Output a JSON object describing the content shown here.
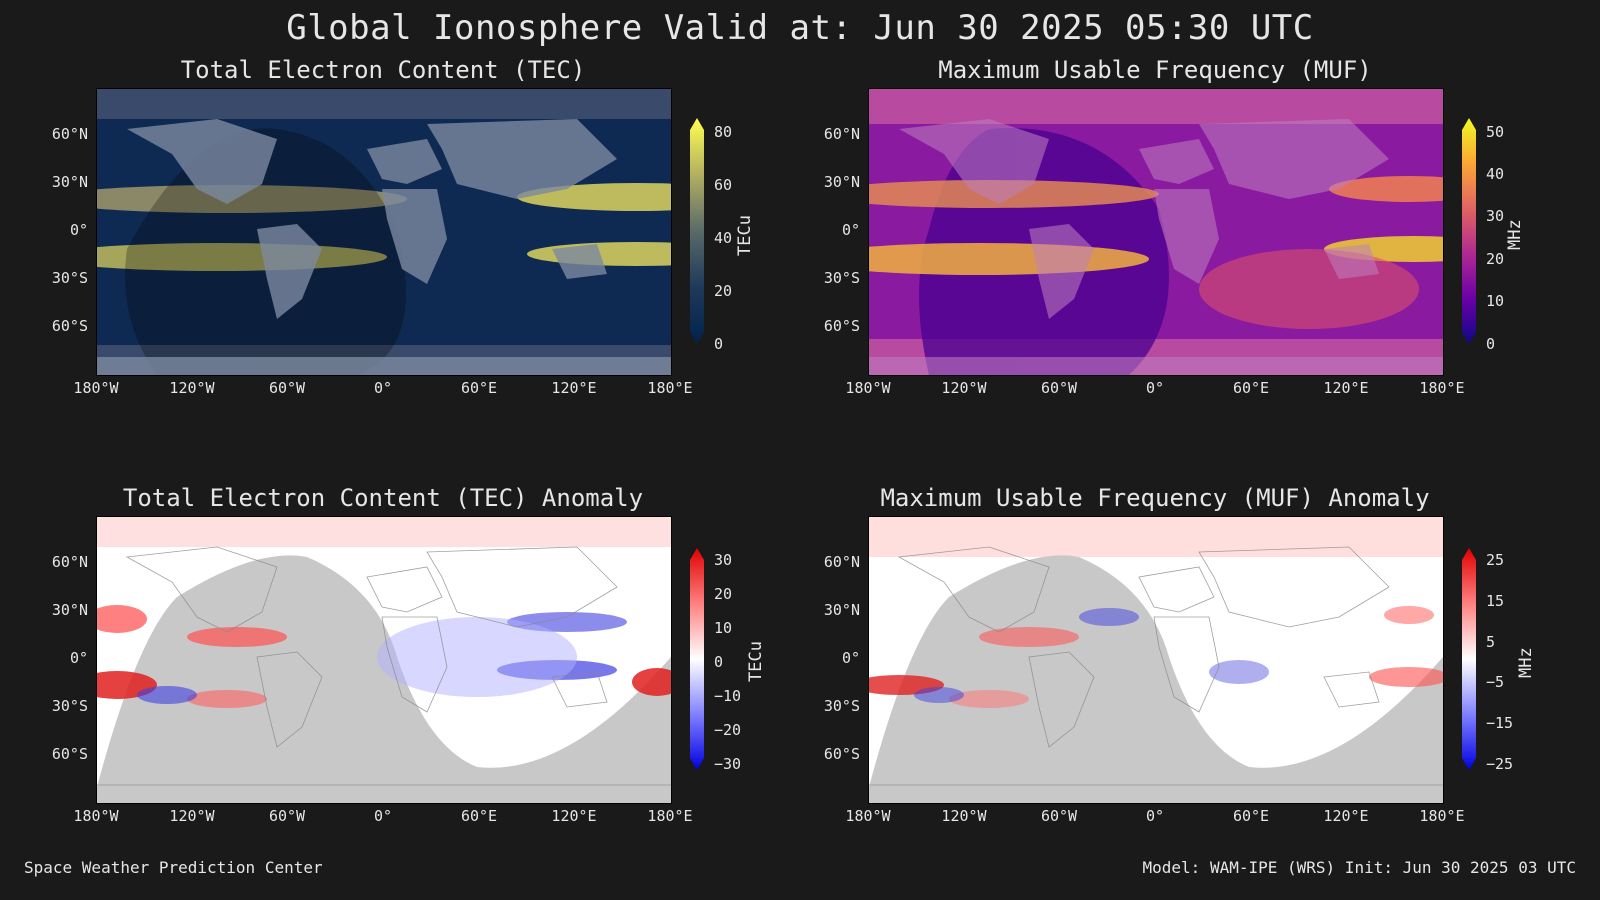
{
  "title": "Global Ionosphere Valid at: Jun 30 2025 05:30 UTC",
  "footer_left": "Space Weather Prediction Center",
  "footer_right": "Model: WAM-IPE (WRS) Init: Jun 30 2025 03 UTC",
  "lat_labels": [
    "60°N",
    "30°N",
    "0°",
    "30°S",
    "60°S"
  ],
  "lon_labels": [
    "180°W",
    "120°W",
    "60°W",
    "0°",
    "60°E",
    "120°E",
    "180°E"
  ],
  "panels": [
    {
      "title": "Total Electron Content (TEC)",
      "unit": "TECu",
      "ticks": [
        "80",
        "60",
        "40",
        "20",
        "0"
      ],
      "colors": [
        "#ffff50",
        "#b3b060",
        "#5a6a6a",
        "#1e3a5a",
        "#00224d"
      ]
    },
    {
      "title": "Maximum Usable Frequency (MUF)",
      "unit": "MHz",
      "ticks": [
        "50",
        "40",
        "30",
        "20",
        "10",
        "0"
      ],
      "colors": [
        "#f0f921",
        "#fca636",
        "#e16462",
        "#b12a90",
        "#6a00a8",
        "#0d0887"
      ]
    },
    {
      "title": "Total Electron Content (TEC) Anomaly",
      "unit": "TECu",
      "ticks": [
        "30",
        "20",
        "10",
        "0",
        "−10",
        "−20",
        "−30"
      ],
      "colors": [
        "#e00000",
        "#ff8080",
        "#ffffff",
        "#8080ff",
        "#0000e0"
      ]
    },
    {
      "title": "Maximum Usable Frequency (MUF) Anomaly",
      "unit": "MHz",
      "ticks": [
        "25",
        "15",
        "5",
        "−5",
        "−15",
        "−25"
      ],
      "colors": [
        "#e00000",
        "#ff8080",
        "#ffffff",
        "#8080ff",
        "#0000e0"
      ]
    }
  ]
}
